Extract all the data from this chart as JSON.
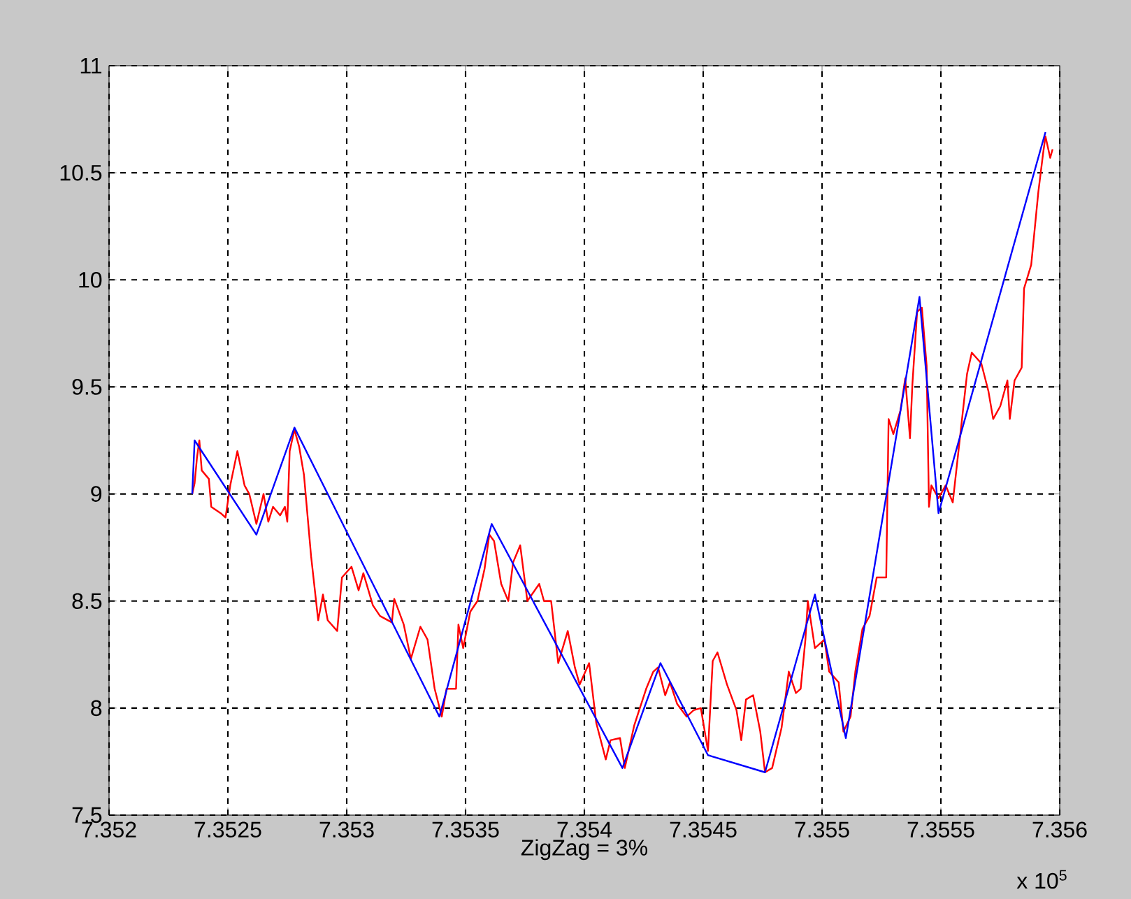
{
  "chart_data": {
    "type": "line",
    "xlabel": "ZigZag = 3%",
    "annotations": [
      "x 10$^{5}$"
    ],
    "xlim": [
      7.352,
      7.356
    ],
    "ylim": [
      7.5,
      11
    ],
    "xticks": [
      7.352,
      7.3525,
      7.353,
      7.3535,
      7.354,
      7.3545,
      7.355,
      7.3555,
      7.356
    ],
    "yticks": [
      7.5,
      8,
      8.5,
      9,
      9.5,
      10,
      10.5,
      11
    ],
    "grid": true,
    "series": [
      {
        "color": "#ff0000",
        "x": [
          7.35235,
          7.35236,
          7.35237,
          7.35238,
          7.35239,
          7.35242,
          7.35243,
          7.35247,
          7.35249,
          7.35251,
          7.35254,
          7.35257,
          7.35259,
          7.35262,
          7.35265,
          7.35267,
          7.35269,
          7.35272,
          7.35274,
          7.35275,
          7.35276,
          7.35278,
          7.3528,
          7.35282,
          7.35285,
          7.35288,
          7.3529,
          7.35292,
          7.35296,
          7.35298,
          7.35302,
          7.35305,
          7.35307,
          7.35311,
          7.35314,
          7.35319,
          7.3532,
          7.35324,
          7.35327,
          7.35331,
          7.35334,
          7.35337,
          7.3534,
          7.35342,
          7.35346,
          7.35347,
          7.35349,
          7.35352,
          7.35355,
          7.35358,
          7.3536,
          7.35362,
          7.35365,
          7.35368,
          7.3537,
          7.35373,
          7.35376,
          7.35381,
          7.35383,
          7.35386,
          7.35389,
          7.35393,
          7.35396,
          7.35398,
          7.35402,
          7.35405,
          7.35409,
          7.35411,
          7.35415,
          7.35417,
          7.35421,
          7.35426,
          7.35429,
          7.35431,
          7.35434,
          7.35436,
          7.35439,
          7.35443,
          7.35446,
          7.35449,
          7.35452,
          7.35454,
          7.35456,
          7.3546,
          7.35464,
          7.35466,
          7.35468,
          7.35471,
          7.35474,
          7.35476,
          7.35479,
          7.35483,
          7.35486,
          7.35489,
          7.35491,
          7.35493,
          7.35494,
          7.35497,
          7.35501,
          7.35503,
          7.35507,
          7.35509,
          7.35512,
          7.35514,
          7.35517,
          7.3552,
          7.35523,
          7.35527,
          7.35528,
          7.3553,
          7.35533,
          7.35535,
          7.35537,
          7.35538,
          7.3554,
          7.35542,
          7.35544,
          7.35545,
          7.35546,
          7.35549,
          7.35552,
          7.35555,
          7.35558,
          7.35561,
          7.35563,
          7.35567,
          7.3557,
          7.35572,
          7.35575,
          7.35578,
          7.35579,
          7.35581,
          7.35584,
          7.35585,
          7.35588,
          7.35591,
          7.35593,
          7.35594,
          7.35596,
          7.35597
        ],
        "values": [
          9.0,
          9.05,
          9.17,
          9.25,
          9.11,
          9.07,
          8.94,
          8.91,
          8.89,
          9.04,
          9.2,
          9.04,
          9.0,
          8.86,
          9.0,
          8.87,
          8.94,
          8.9,
          8.94,
          8.87,
          9.2,
          9.3,
          9.22,
          9.09,
          8.71,
          8.41,
          8.53,
          8.41,
          8.36,
          8.61,
          8.66,
          8.55,
          8.63,
          8.48,
          8.43,
          8.4,
          8.51,
          8.39,
          8.23,
          8.38,
          8.32,
          8.09,
          7.96,
          8.09,
          8.09,
          8.39,
          8.28,
          8.45,
          8.5,
          8.65,
          8.81,
          8.78,
          8.58,
          8.5,
          8.68,
          8.76,
          8.5,
          8.58,
          8.5,
          8.5,
          8.21,
          8.36,
          8.19,
          8.11,
          8.21,
          7.93,
          7.76,
          7.85,
          7.86,
          7.72,
          7.92,
          8.09,
          8.17,
          8.19,
          8.06,
          8.12,
          8.02,
          7.96,
          7.99,
          8.0,
          7.8,
          8.22,
          8.26,
          8.11,
          7.99,
          7.85,
          8.04,
          8.06,
          7.89,
          7.7,
          7.72,
          7.91,
          8.17,
          8.07,
          8.09,
          8.32,
          8.5,
          8.28,
          8.32,
          8.17,
          8.12,
          7.89,
          7.96,
          8.17,
          8.37,
          8.43,
          8.61,
          8.61,
          9.35,
          9.28,
          9.39,
          9.54,
          9.26,
          9.51,
          9.85,
          9.87,
          9.6,
          8.94,
          9.04,
          8.98,
          9.04,
          8.96,
          9.26,
          9.56,
          9.66,
          9.61,
          9.48,
          9.35,
          9.41,
          9.53,
          9.35,
          9.53,
          9.59,
          9.96,
          10.07,
          10.41,
          10.59,
          10.67,
          10.57,
          10.61
        ]
      },
      {
        "color": "#0000ff",
        "x": [
          7.35235,
          7.35236,
          7.35262,
          7.35278,
          7.35339,
          7.35361,
          7.35416,
          7.35432,
          7.35452,
          7.35476,
          7.35497,
          7.3551,
          7.35541,
          7.35549,
          7.35594
        ],
        "values": [
          9.0,
          9.25,
          8.81,
          9.31,
          7.96,
          8.86,
          7.72,
          8.21,
          7.78,
          7.7,
          8.53,
          7.86,
          9.92,
          8.91,
          10.69
        ]
      }
    ]
  }
}
